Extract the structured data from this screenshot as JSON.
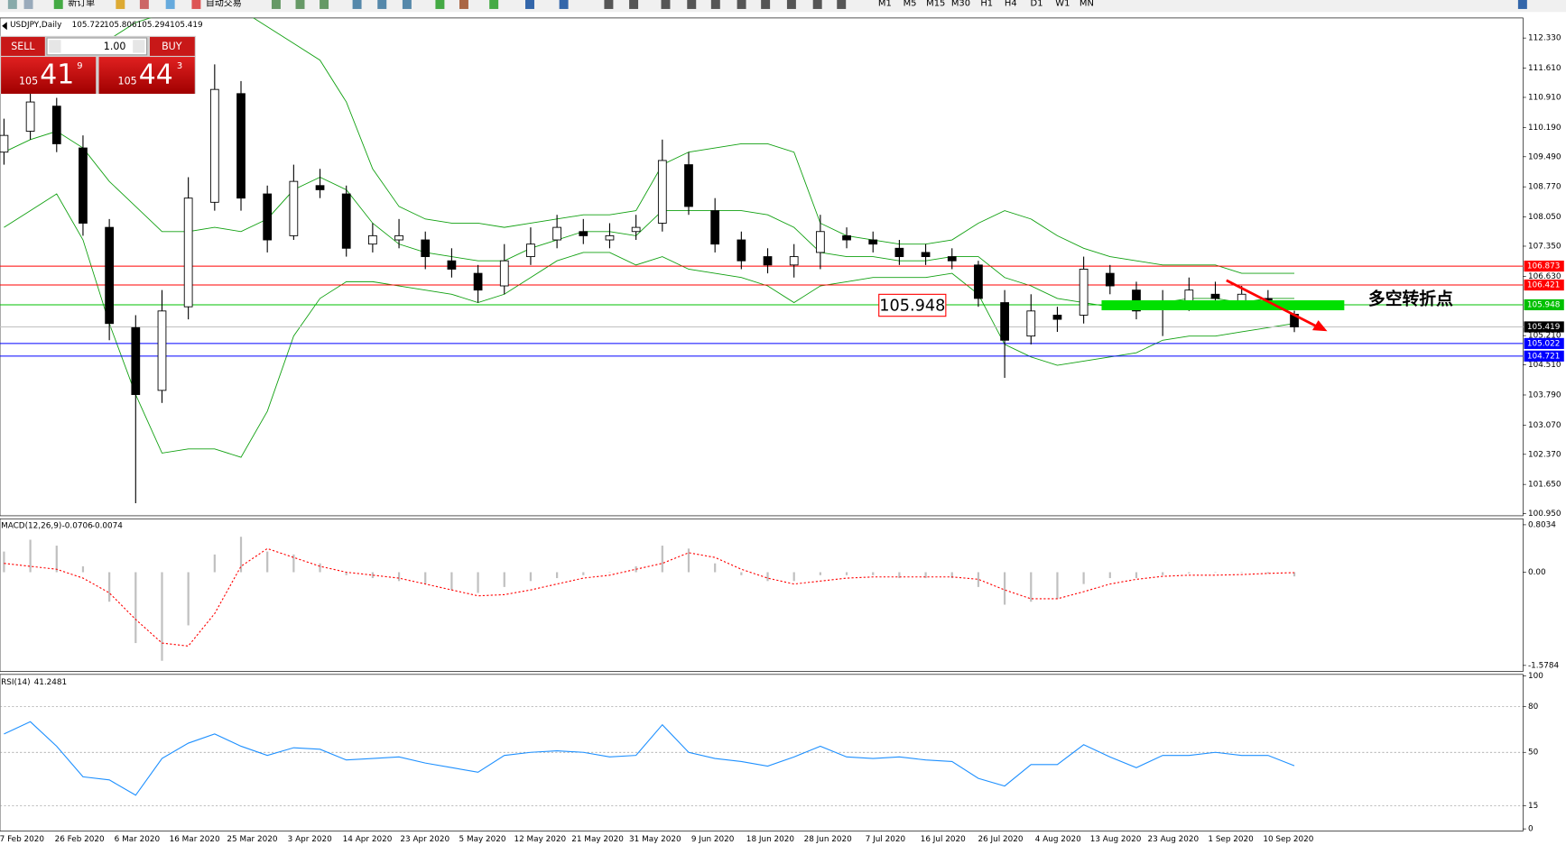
{
  "toolbar": {
    "new_order": "新订单",
    "auto_trading": "自动交易",
    "timeframes": [
      "M1",
      "M5",
      "M15",
      "M30",
      "H1",
      "H4",
      "D1",
      "W1",
      "MN"
    ]
  },
  "trade_panel": {
    "sell": "SELL",
    "lots": "1.00",
    "buy": "BUY",
    "sell_price": {
      "big": "105",
      "pips": "41",
      "point": "9"
    },
    "buy_price": {
      "big": "105",
      "pips": "44",
      "point": "3"
    }
  },
  "chart_data": [
    {
      "type": "candlestick",
      "title": "USDJPY,Daily",
      "open": [
        109.6,
        110.1,
        110.7,
        109.7,
        107.8,
        105.4,
        103.9,
        105.9,
        108.4,
        111.0,
        108.6,
        107.6,
        108.8,
        108.6,
        107.4,
        107.5,
        107.5,
        107.0,
        106.7,
        106.4,
        107.1,
        107.5,
        107.7,
        107.5,
        107.7,
        107.9,
        109.3,
        108.2,
        107.5,
        107.1,
        106.9,
        107.2,
        107.6,
        107.5,
        107.3,
        107.2,
        107.1,
        106.9,
        106.0,
        105.2,
        105.7,
        105.7,
        106.7,
        106.3,
        105.9,
        106.0,
        106.2,
        106.0,
        106.1,
        105.722
      ],
      "high": [
        110.4,
        111.2,
        110.9,
        110.0,
        108.0,
        105.7,
        106.3,
        109.0,
        111.7,
        111.3,
        108.8,
        109.3,
        109.2,
        108.8,
        107.9,
        108.0,
        107.7,
        107.3,
        106.9,
        107.4,
        107.8,
        108.1,
        108.0,
        107.9,
        108.1,
        109.9,
        109.6,
        108.5,
        107.7,
        107.3,
        107.4,
        108.1,
        107.8,
        107.7,
        107.5,
        107.4,
        107.3,
        107.0,
        106.3,
        106.2,
        105.9,
        107.1,
        106.9,
        106.5,
        106.3,
        106.6,
        106.5,
        106.4,
        106.3,
        105.806
      ],
      "low": [
        109.3,
        109.9,
        109.6,
        107.6,
        105.1,
        101.2,
        103.6,
        105.6,
        108.2,
        108.2,
        107.2,
        107.5,
        108.5,
        107.1,
        107.2,
        107.3,
        106.8,
        106.6,
        106.0,
        106.2,
        106.9,
        107.3,
        107.4,
        107.3,
        107.5,
        107.7,
        108.1,
        107.2,
        106.8,
        106.7,
        106.6,
        106.8,
        107.3,
        107.2,
        106.9,
        106.9,
        106.8,
        105.9,
        104.2,
        105.0,
        105.3,
        105.5,
        106.2,
        105.6,
        105.2,
        105.8,
        105.9,
        105.9,
        105.9,
        105.294
      ],
      "close": [
        110.0,
        110.8,
        109.8,
        107.9,
        105.5,
        103.8,
        105.8,
        108.5,
        111.1,
        108.5,
        107.5,
        108.9,
        108.7,
        107.3,
        107.6,
        107.6,
        107.1,
        106.8,
        106.3,
        107.0,
        107.4,
        107.8,
        107.6,
        107.6,
        107.8,
        109.4,
        108.3,
        107.4,
        107.0,
        106.9,
        107.1,
        107.7,
        107.5,
        107.4,
        107.1,
        107.1,
        107.0,
        106.1,
        105.1,
        105.8,
        105.6,
        106.8,
        106.4,
        105.8,
        105.9,
        106.3,
        106.1,
        106.2,
        106.0,
        105.419
      ],
      "up_color": "#ffffff",
      "down_color": "#000000",
      "bands": {
        "color": "#10a010",
        "upper": [
          111.4,
          111.5,
          111.6,
          111.9,
          112.3,
          112.7,
          112.9,
          112.9,
          113.0,
          113.0,
          112.6,
          112.2,
          111.8,
          110.8,
          109.2,
          108.3,
          108.0,
          107.9,
          107.9,
          107.8,
          107.9,
          108.0,
          108.1,
          108.1,
          108.2,
          109.3,
          109.6,
          109.7,
          109.8,
          109.8,
          109.6,
          107.9,
          107.6,
          107.5,
          107.4,
          107.4,
          107.5,
          107.9,
          108.2,
          108.0,
          107.6,
          107.3,
          107.1,
          107.0,
          106.9,
          106.9,
          106.9,
          106.7,
          106.7,
          106.7
        ],
        "middle": [
          109.6,
          109.9,
          110.1,
          109.7,
          108.9,
          108.3,
          107.7,
          107.7,
          107.8,
          107.7,
          108.0,
          108.7,
          109.0,
          108.7,
          107.9,
          107.4,
          107.2,
          107.1,
          107.0,
          107.0,
          107.3,
          107.5,
          107.7,
          107.7,
          107.6,
          108.2,
          108.2,
          108.2,
          108.2,
          108.1,
          107.8,
          107.2,
          107.1,
          107.1,
          107.0,
          107.0,
          107.1,
          107.1,
          106.6,
          106.4,
          106.1,
          106.0,
          105.9,
          105.9,
          106.0,
          106.1,
          106.1,
          106.0,
          106.1,
          106.1
        ],
        "lower": [
          107.8,
          108.2,
          108.6,
          107.5,
          105.5,
          103.8,
          102.4,
          102.5,
          102.5,
          102.3,
          103.4,
          105.2,
          106.1,
          106.5,
          106.5,
          106.4,
          106.3,
          106.2,
          106.0,
          106.2,
          106.6,
          107.0,
          107.2,
          107.2,
          106.9,
          107.1,
          106.8,
          106.7,
          106.6,
          106.4,
          106.0,
          106.4,
          106.5,
          106.6,
          106.6,
          106.6,
          106.7,
          106.2,
          105.0,
          104.7,
          104.5,
          104.6,
          104.7,
          104.8,
          105.1,
          105.2,
          105.2,
          105.3,
          105.4,
          105.5
        ]
      },
      "ylim": [
        100.9,
        112.81
      ],
      "yticks": [
        {
          "value": 100.95,
          "label": "100.950"
        },
        {
          "value": 101.65,
          "label": "101.650"
        },
        {
          "value": 102.37,
          "label": "102.370"
        },
        {
          "value": 103.07,
          "label": "103.070"
        },
        {
          "value": 103.79,
          "label": "103.790"
        },
        {
          "value": 104.51,
          "label": "104.510"
        },
        {
          "value": 105.21,
          "label": "105.210"
        },
        {
          "value": 106.63,
          "label": "106.630"
        },
        {
          "value": 107.35,
          "label": "107.350"
        },
        {
          "value": 108.05,
          "label": "108.050"
        },
        {
          "value": 108.77,
          "label": "108.770"
        },
        {
          "value": 109.49,
          "label": "109.490"
        },
        {
          "value": 110.19,
          "label": "110.190"
        },
        {
          "value": 110.91,
          "label": "110.910"
        },
        {
          "value": 111.61,
          "label": "111.610"
        },
        {
          "value": 112.33,
          "label": "112.330"
        }
      ],
      "levels": [
        {
          "value": 106.873,
          "color": "#ff0000",
          "tag_color": "#ff0000"
        },
        {
          "value": 106.421,
          "color": "#ff0000",
          "tag_color": "#ff0000"
        },
        {
          "value": 105.948,
          "color": "#00c000",
          "tag_color": "#00c000"
        },
        {
          "value": 105.419,
          "color": "#c0c0c0",
          "tag_color": "#000000"
        },
        {
          "value": 105.022,
          "color": "#0000ff",
          "tag_color": "#0000ff"
        },
        {
          "value": 104.721,
          "color": "#0000ff",
          "tag_color": "#0000ff"
        }
      ],
      "x_labels": [
        "7 Feb 2020",
        "26 Feb 2020",
        "6 Mar 2020",
        "16 Mar 2020",
        "25 Mar 2020",
        "3 Apr 2020",
        "14 Apr 2020",
        "23 Apr 2020",
        "5 May 2020",
        "12 May 2020",
        "21 May 2020",
        "31 May 2020",
        "9 Jun 2020",
        "18 Jun 2020",
        "28 Jun 2020",
        "7 Jul 2020",
        "16 Jul 2020",
        "26 Jul 2020",
        "4 Aug 2020",
        "13 Aug 2020",
        "23 Aug 2020",
        "1 Sep 2020",
        "10 Sep 2020"
      ],
      "annotations": {
        "price_box": "105.948",
        "note": "多空转折点"
      }
    },
    {
      "type": "macd",
      "title": "MACD(12,26,9)",
      "values": [
        0.35,
        0.55,
        0.45,
        0.1,
        -0.5,
        -1.2,
        -1.5,
        -0.9,
        0.3,
        0.6,
        0.35,
        0.3,
        0.15,
        -0.05,
        -0.1,
        -0.15,
        -0.2,
        -0.3,
        -0.35,
        -0.25,
        -0.15,
        -0.1,
        -0.05,
        0.0,
        0.1,
        0.45,
        0.4,
        0.15,
        -0.05,
        -0.15,
        -0.15,
        -0.05,
        -0.05,
        -0.05,
        -0.1,
        -0.1,
        -0.1,
        -0.25,
        -0.55,
        -0.5,
        -0.45,
        -0.2,
        -0.1,
        -0.1,
        -0.05,
        -0.02,
        0.0,
        0.0,
        -0.02,
        -0.0706
      ],
      "signal": [
        0.15,
        0.1,
        0.05,
        -0.1,
        -0.35,
        -0.8,
        -1.2,
        -1.25,
        -0.7,
        0.1,
        0.4,
        0.25,
        0.1,
        0.0,
        -0.05,
        -0.1,
        -0.2,
        -0.3,
        -0.4,
        -0.38,
        -0.3,
        -0.2,
        -0.1,
        -0.05,
        0.05,
        0.15,
        0.33,
        0.25,
        0.05,
        -0.1,
        -0.2,
        -0.15,
        -0.1,
        -0.08,
        -0.08,
        -0.08,
        -0.08,
        -0.12,
        -0.3,
        -0.45,
        -0.45,
        -0.33,
        -0.2,
        -0.12,
        -0.07,
        -0.05,
        -0.05,
        -0.04,
        -0.02,
        -0.0074
      ],
      "color": "#c0c0c0",
      "signal_color": "#ff0000",
      "ylim": [
        -1.68,
        0.905
      ],
      "yticks": [
        -1.5784,
        {
          "value": 0,
          "label": "0.00"
        },
        0.8034
      ]
    },
    {
      "type": "line",
      "title": "RSI(14)",
      "values": [
        62,
        70,
        54,
        34,
        32,
        22,
        46,
        56,
        62,
        54,
        48,
        53,
        52,
        45,
        46,
        47,
        43,
        40,
        37,
        48,
        50,
        51,
        50,
        47,
        48,
        68,
        50,
        46,
        44,
        41,
        47,
        54,
        47,
        46,
        47,
        45,
        44,
        33,
        28,
        42,
        42,
        55,
        47,
        40,
        48,
        48,
        50,
        48,
        48,
        41.2481
      ],
      "color": "#1e90ff",
      "ylim": [
        -1.4,
        100.9
      ],
      "yticks": [
        0,
        15,
        50,
        80,
        100
      ],
      "levels": [
        15,
        50,
        80
      ]
    }
  ]
}
